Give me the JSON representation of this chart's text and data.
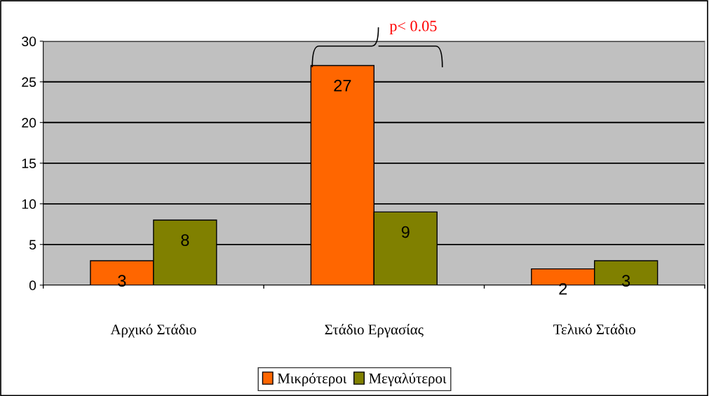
{
  "chart_data": {
    "type": "bar",
    "categories": [
      "Αρχικό Στάδιο",
      "Στάδιο Εργασίας",
      "Τελικό Στάδιο"
    ],
    "series": [
      {
        "name": "Μικρότεροι",
        "color": "#ff6600",
        "values": [
          3,
          27,
          2
        ]
      },
      {
        "name": "Μεγαλύτεροι",
        "color": "#808000",
        "values": [
          8,
          9,
          3
        ]
      }
    ],
    "ylim": [
      0,
      30
    ],
    "yticks": [
      0,
      5,
      10,
      15,
      20,
      25,
      30
    ],
    "grid": "y",
    "legend": "bottom",
    "data_labels": true,
    "annotations": [
      {
        "text": "p< 0.05",
        "x": "Στάδιο Εργασίας",
        "y": 27
      }
    ]
  }
}
